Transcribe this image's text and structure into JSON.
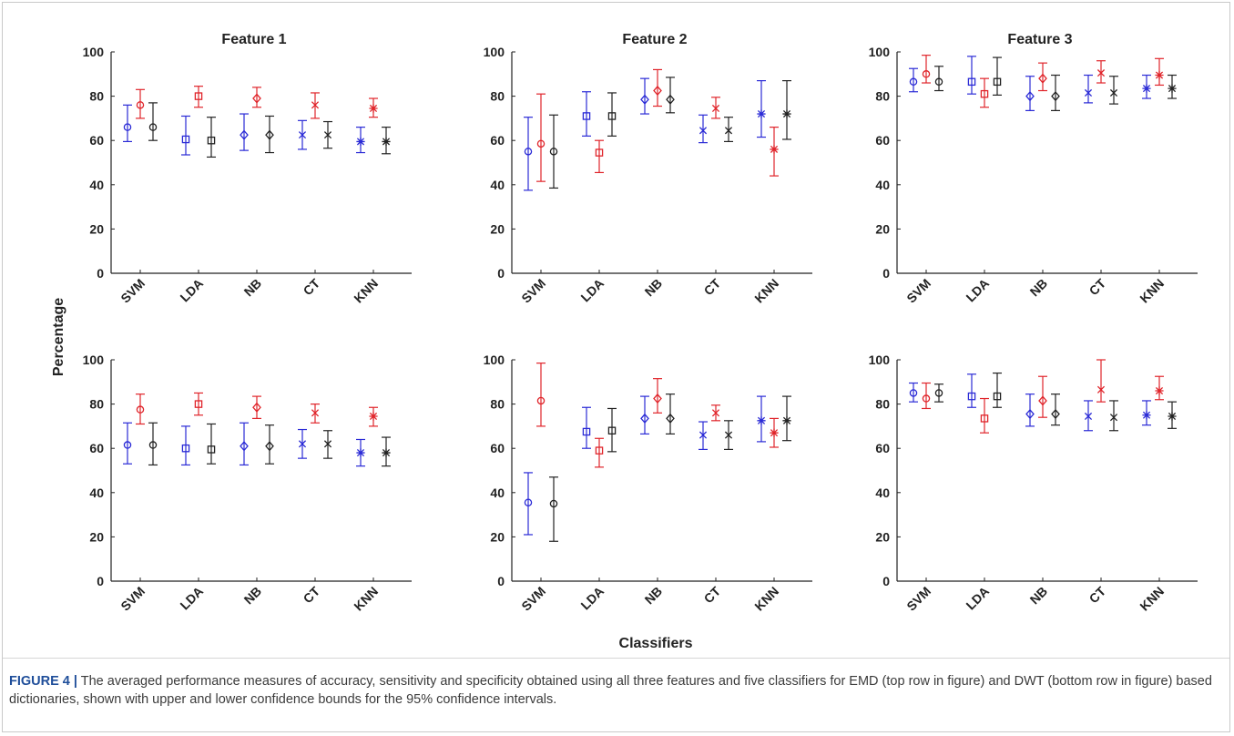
{
  "figure": {
    "ylabel": "Percentage",
    "xlabel": "Classifiers",
    "caption_label": "FIGURE 4 |",
    "caption_text": " The averaged performance measures of accuracy, sensitivity and specificity obtained using all three features and five classifiers for EMD (top row in figure) and DWT (bottom row in figure) based dictionaries, shown with upper and lower confidence bounds for the 95% confidence intervals."
  },
  "colors": {
    "accuracy": "#2a2ad6",
    "sensitivity": "#e0242a",
    "specificity": "#222222",
    "axis": "#222222"
  },
  "chart_data": [
    {
      "type": "scatter",
      "title": "Feature 1",
      "categories": [
        "SVM",
        "LDA",
        "NB",
        "CT",
        "KNN"
      ],
      "yticks": [
        0,
        20,
        40,
        60,
        80,
        100
      ],
      "ylim": [
        0,
        100
      ],
      "markers": [
        "circle",
        "square",
        "diamond",
        "x",
        "star"
      ],
      "series": [
        {
          "values": [
            66,
            60.5,
            62.5,
            62.5,
            59.5
          ],
          "lower": [
            59.5,
            53.5,
            55.5,
            56,
            54.5
          ],
          "upper": [
            76,
            71,
            72,
            69,
            66
          ]
        },
        {
          "values": [
            76,
            80,
            79,
            76,
            74.5
          ],
          "lower": [
            70,
            75,
            75,
            70,
            70.5
          ],
          "upper": [
            83,
            84.5,
            84,
            81.5,
            79
          ]
        },
        {
          "values": [
            66,
            60,
            62.5,
            62.5,
            59.5
          ],
          "lower": [
            60,
            52.5,
            54.5,
            56.5,
            54
          ],
          "upper": [
            77,
            70.5,
            71,
            68.5,
            66
          ]
        }
      ]
    },
    {
      "type": "scatter",
      "title": "Feature 2",
      "categories": [
        "SVM",
        "LDA",
        "NB",
        "CT",
        "KNN"
      ],
      "yticks": [
        0,
        20,
        40,
        60,
        80,
        100
      ],
      "ylim": [
        0,
        100
      ],
      "markers": [
        "circle",
        "square",
        "diamond",
        "x",
        "star"
      ],
      "series": [
        {
          "values": [
            55,
            71,
            78.5,
            64.5,
            72
          ],
          "lower": [
            37.5,
            62,
            72,
            59,
            61.5
          ],
          "upper": [
            70.5,
            82,
            88,
            71.5,
            87
          ]
        },
        {
          "values": [
            58.5,
            54.5,
            82.5,
            74.5,
            56
          ],
          "lower": [
            41.5,
            45.5,
            75.5,
            70,
            44
          ],
          "upper": [
            81,
            60,
            92,
            79.5,
            66
          ]
        },
        {
          "values": [
            55,
            71,
            78.5,
            64.5,
            72
          ],
          "lower": [
            38.5,
            62,
            72.5,
            59.5,
            60.5
          ],
          "upper": [
            71.5,
            81.5,
            88.5,
            70.5,
            87
          ]
        }
      ]
    },
    {
      "type": "scatter",
      "title": "Feature 3",
      "categories": [
        "SVM",
        "LDA",
        "NB",
        "CT",
        "KNN"
      ],
      "yticks": [
        0,
        20,
        40,
        60,
        80,
        100
      ],
      "ylim": [
        0,
        100
      ],
      "markers": [
        "circle",
        "square",
        "diamond",
        "x",
        "star"
      ],
      "series": [
        {
          "values": [
            86.5,
            86.5,
            80,
            81.5,
            83.5
          ],
          "lower": [
            82,
            81,
            73.5,
            77,
            79
          ],
          "upper": [
            92.5,
            98,
            89,
            89.5,
            89.5
          ]
        },
        {
          "values": [
            90,
            81,
            88,
            90.5,
            89.5
          ],
          "lower": [
            86,
            75,
            82.5,
            86,
            85
          ],
          "upper": [
            98.5,
            88,
            95,
            96,
            97
          ]
        },
        {
          "values": [
            86.5,
            86.5,
            80,
            81.5,
            83.5
          ],
          "lower": [
            82.5,
            80.5,
            73.5,
            76.5,
            79
          ],
          "upper": [
            93.5,
            97.5,
            89.5,
            89,
            89.5
          ]
        }
      ]
    },
    {
      "type": "scatter",
      "title": "",
      "categories": [
        "SVM",
        "LDA",
        "NB",
        "CT",
        "KNN"
      ],
      "yticks": [
        0,
        20,
        40,
        60,
        80,
        100
      ],
      "ylim": [
        0,
        100
      ],
      "markers": [
        "circle",
        "square",
        "diamond",
        "x",
        "star"
      ],
      "series": [
        {
          "values": [
            61.5,
            60,
            61,
            62,
            58
          ],
          "lower": [
            53,
            52.5,
            52.5,
            55.5,
            52
          ],
          "upper": [
            71.5,
            70,
            71.5,
            68.5,
            64
          ]
        },
        {
          "values": [
            77.5,
            80,
            78.5,
            76,
            74.5
          ],
          "lower": [
            71,
            75,
            73.5,
            71.5,
            70
          ],
          "upper": [
            84.5,
            85,
            83.5,
            80,
            78.5
          ]
        },
        {
          "values": [
            61.5,
            59.5,
            61,
            62,
            58
          ],
          "lower": [
            52.5,
            53,
            53,
            55.5,
            52
          ],
          "upper": [
            71.5,
            71,
            70.5,
            68,
            65
          ]
        }
      ]
    },
    {
      "type": "scatter",
      "title": "",
      "categories": [
        "SVM",
        "LDA",
        "NB",
        "CT",
        "KNN"
      ],
      "yticks": [
        0,
        20,
        40,
        60,
        80,
        100
      ],
      "ylim": [
        0,
        100
      ],
      "markers": [
        "circle",
        "square",
        "diamond",
        "x",
        "star"
      ],
      "series": [
        {
          "values": [
            35.5,
            67.5,
            73.5,
            66,
            72.5
          ],
          "lower": [
            21,
            60,
            66.5,
            59.5,
            63
          ],
          "upper": [
            49,
            78.5,
            83.5,
            72,
            83.5
          ]
        },
        {
          "values": [
            81.5,
            59,
            82.5,
            76,
            67
          ],
          "lower": [
            70,
            51.5,
            76,
            72.5,
            60.5
          ],
          "upper": [
            98.5,
            64.5,
            91.5,
            79.5,
            73.5
          ]
        },
        {
          "values": [
            35,
            68,
            73.5,
            66,
            72.5
          ],
          "lower": [
            18,
            58.5,
            66.5,
            59.5,
            63.5
          ],
          "upper": [
            47,
            78,
            84.5,
            72.5,
            83.5
          ]
        }
      ]
    },
    {
      "type": "scatter",
      "title": "",
      "categories": [
        "SVM",
        "LDA",
        "NB",
        "CT",
        "KNN"
      ],
      "yticks": [
        0,
        20,
        40,
        60,
        80,
        100
      ],
      "ylim": [
        0,
        100
      ],
      "markers": [
        "circle",
        "square",
        "diamond",
        "x",
        "star"
      ],
      "series": [
        {
          "values": [
            85,
            83.5,
            75.5,
            74.5,
            75
          ],
          "lower": [
            81,
            78.5,
            70,
            68,
            70.5
          ],
          "upper": [
            89.5,
            93.5,
            84.5,
            81.5,
            81.5
          ]
        },
        {
          "values": [
            82.5,
            73.5,
            81.5,
            86.5,
            86
          ],
          "lower": [
            78,
            67,
            74,
            81,
            82
          ],
          "upper": [
            89.5,
            82.5,
            92.5,
            100,
            92.5
          ]
        },
        {
          "values": [
            85,
            83.5,
            75.5,
            74,
            74.5
          ],
          "lower": [
            81,
            78.5,
            70.5,
            68,
            69
          ],
          "upper": [
            89,
            94,
            84.5,
            81.5,
            81
          ]
        }
      ]
    }
  ]
}
